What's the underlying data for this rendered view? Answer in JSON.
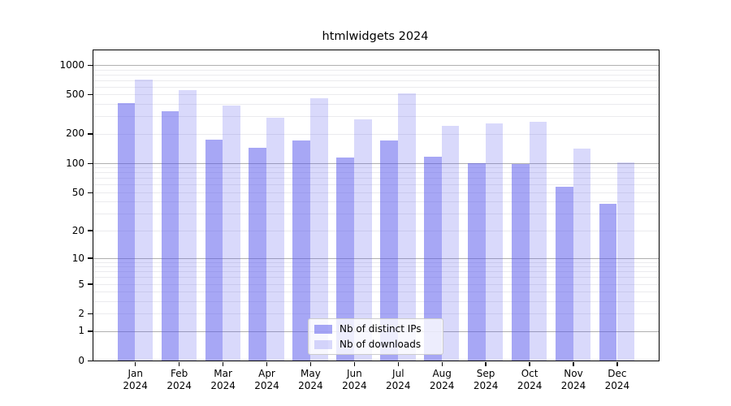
{
  "colors": {
    "ips_bar": "rgba(80,80,235,0.5)",
    "downloads_bar": "rgba(80,80,235,0.22)",
    "grid_major": "#b0b0b0",
    "grid_minor": "#ebebee",
    "axis": "#000000"
  },
  "chart_data": {
    "type": "bar",
    "title": "htmlwidgets 2024",
    "scale": "log1p",
    "grid": true,
    "legend_position": "bottom-center-inside",
    "xlabel": "",
    "ylabel": "",
    "ylim": [
      0,
      1405
    ],
    "y_ticks": [
      "1000",
      "500",
      "200",
      "100",
      "50",
      "20",
      "10",
      "5",
      "2",
      "1",
      "0"
    ],
    "y_tick_values": [
      1000,
      500,
      200,
      100,
      50,
      20,
      10,
      5,
      2,
      1,
      0
    ],
    "categories": [
      {
        "month": "Jan",
        "year": "2024"
      },
      {
        "month": "Feb",
        "year": "2024"
      },
      {
        "month": "Mar",
        "year": "2024"
      },
      {
        "month": "Apr",
        "year": "2024"
      },
      {
        "month": "May",
        "year": "2024"
      },
      {
        "month": "Jun",
        "year": "2024"
      },
      {
        "month": "Jul",
        "year": "2024"
      },
      {
        "month": "Aug",
        "year": "2024"
      },
      {
        "month": "Sep",
        "year": "2024"
      },
      {
        "month": "Oct",
        "year": "2024"
      },
      {
        "month": "Nov",
        "year": "2024"
      },
      {
        "month": "Dec",
        "year": "2024"
      }
    ],
    "series": [
      {
        "name": "Nb of distinct IPs",
        "values": [
          408,
          340,
          175,
          143,
          171,
          113,
          169,
          117,
          100,
          97,
          57,
          38
        ]
      },
      {
        "name": "Nb of downloads",
        "values": [
          705,
          554,
          383,
          291,
          457,
          278,
          510,
          238,
          256,
          266,
          140,
          101
        ]
      }
    ]
  }
}
